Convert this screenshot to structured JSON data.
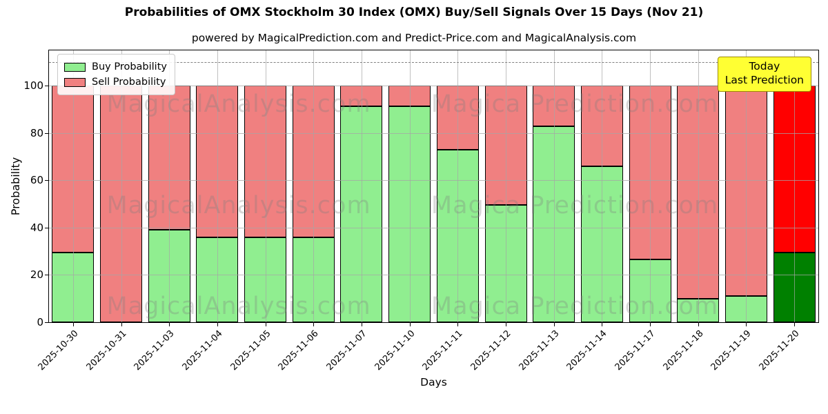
{
  "title": "Probabilities of OMX Stockholm 30 Index (OMX) Buy/Sell Signals Over 15 Days (Nov 21)",
  "subtitle": "powered by MagicalPrediction.com and Predict-Price.com and MagicalAnalysis.com",
  "legend": {
    "buy_label": "Buy Probability",
    "sell_label": "Sell Probability"
  },
  "annotation": {
    "line1": "Today",
    "line2": "Last Prediction"
  },
  "axes": {
    "x_label": "Days",
    "y_label": "Probability",
    "y_ticks": [
      0,
      20,
      40,
      60,
      80,
      100
    ],
    "y_max": 115,
    "dashed_line_y": 110,
    "grid": true
  },
  "watermarks": {
    "left_text": "MagicalAnalysis.com",
    "right_text": "Magica Prediction.com"
  },
  "colors": {
    "buy": "#90EE90",
    "sell": "#F08080",
    "buy_today": "#008000",
    "sell_today": "#FF0000",
    "annotation_bg": "#FFFF33",
    "bar_edge": "#000000"
  },
  "chart_data": {
    "type": "bar",
    "stacked": true,
    "title": "Probabilities of OMX Stockholm 30 Index (OMX) Buy/Sell Signals Over 15 Days (Nov 21)",
    "xlabel": "Days",
    "ylabel": "Probability",
    "ylim": [
      0,
      115
    ],
    "legend_position": "upper-left",
    "categories": [
      "2025-10-30",
      "2025-10-31",
      "2025-11-03",
      "2025-11-04",
      "2025-11-05",
      "2025-11-06",
      "2025-11-07",
      "2025-11-10",
      "2025-11-11",
      "2025-11-12",
      "2025-11-13",
      "2025-11-14",
      "2025-11-17",
      "2025-11-18",
      "2025-11-19",
      "2025-11-20"
    ],
    "series": [
      {
        "name": "Buy Probability",
        "color": "#90EE90",
        "values": [
          29.5,
          0,
          39,
          36,
          36,
          36,
          91.5,
          91.5,
          73,
          49.5,
          83,
          66,
          26.5,
          10,
          11,
          29.5
        ]
      },
      {
        "name": "Sell Probability",
        "color": "#F08080",
        "values": [
          70.5,
          100,
          61,
          64,
          64,
          64,
          8.5,
          8.5,
          27,
          50.5,
          17,
          34,
          73.5,
          90,
          89,
          70.5
        ]
      }
    ],
    "highlight_last": {
      "index": 15,
      "buy_color": "#008000",
      "sell_color": "#FF0000",
      "note": "Today / Last Prediction"
    }
  }
}
